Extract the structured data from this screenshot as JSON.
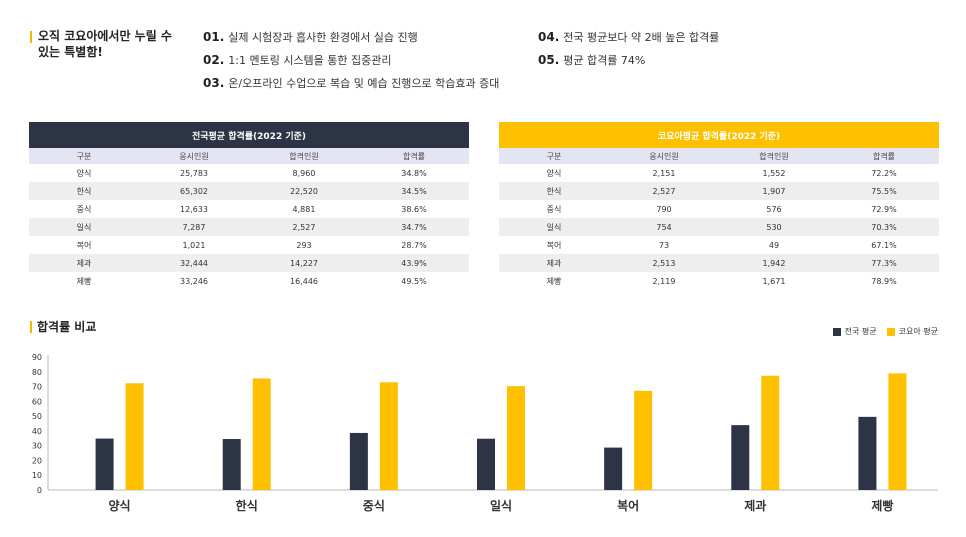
{
  "intro": "오직 코요아에서만 누릴 수 있는 특별함!",
  "features": [
    {
      "num": "01.",
      "text": "실제 시험장과 흡사한 환경에서 실습 진행"
    },
    {
      "num": "02.",
      "text": "1:1 멘토링 시스템을 통한 집중관리"
    },
    {
      "num": "03.",
      "text": "온/오프라인 수업으로 복습 및 예습 진행으로 학습효과 증대"
    },
    {
      "num": "04.",
      "text": "전국 평균보다 약 2배 높은 합격률"
    },
    {
      "num": "05.",
      "text": "평균 합격률 74%"
    }
  ],
  "national_table": {
    "title": "전국평균 합격률(2022 기준)",
    "header_color": "#2d3446",
    "columns": [
      "구분",
      "응시인원",
      "합격인원",
      "합격률"
    ],
    "rows": [
      [
        "양식",
        "25,783",
        "8,960",
        "34.8%"
      ],
      [
        "한식",
        "65,302",
        "22,520",
        "34.5%"
      ],
      [
        "중식",
        "12,633",
        "4,881",
        "38.6%"
      ],
      [
        "일식",
        "7,287",
        "2,527",
        "34.7%"
      ],
      [
        "복어",
        "1,021",
        "293",
        "28.7%"
      ],
      [
        "제과",
        "32,444",
        "14,227",
        "43.9%"
      ],
      [
        "제빵",
        "33,246",
        "16,446",
        "49.5%"
      ]
    ]
  },
  "koyoa_table": {
    "title": "코요아평균 합격률(2022 기준)",
    "header_color": "#ffc000",
    "columns": [
      "구분",
      "응시인원",
      "합격인원",
      "합격률"
    ],
    "rows": [
      [
        "양식",
        "2,151",
        "1,552",
        "72.2%"
      ],
      [
        "한식",
        "2,527",
        "1,907",
        "75.5%"
      ],
      [
        "중식",
        "790",
        "576",
        "72.9%"
      ],
      [
        "일식",
        "754",
        "530",
        "70.3%"
      ],
      [
        "복어",
        "73",
        "49",
        "67.1%"
      ],
      [
        "제과",
        "2,513",
        "1,942",
        "77.3%"
      ],
      [
        "제빵",
        "2,119",
        "1,671",
        "78.9%"
      ]
    ]
  },
  "chart_data": {
    "type": "bar",
    "title": "합격률 비교",
    "categories": [
      "양식",
      "한식",
      "중식",
      "일식",
      "복어",
      "제과",
      "제빵"
    ],
    "series": [
      {
        "name": "전국 평균",
        "color": "#2d3446",
        "values": [
          34.8,
          34.5,
          38.6,
          34.7,
          28.7,
          43.9,
          49.5
        ]
      },
      {
        "name": "코요아 평균",
        "color": "#ffc000",
        "values": [
          72.2,
          75.5,
          72.9,
          70.3,
          67.1,
          77.3,
          78.9
        ]
      }
    ],
    "ylim": [
      0,
      90
    ],
    "yticks": [
      "0",
      "10",
      "20",
      "30",
      "40",
      "50",
      "60",
      "70",
      "80",
      "90"
    ],
    "legend_position": "top-right",
    "grid": false
  }
}
